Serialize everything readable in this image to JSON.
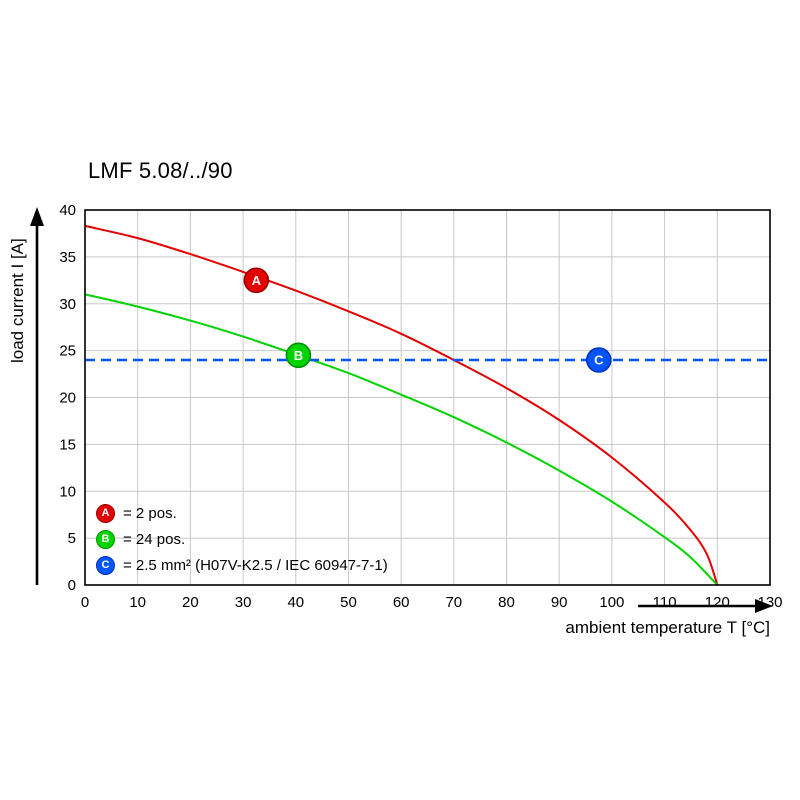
{
  "chart": {
    "title": "LMF 5.08/../90",
    "xlabel": "ambient temperature T [°C]",
    "ylabel": "load current I [A]"
  },
  "chart_data": {
    "type": "line",
    "title": "LMF 5.08/../90",
    "xlabel": "ambient temperature T [°C]",
    "ylabel": "load current I [A]",
    "xlim": [
      0,
      130
    ],
    "ylim": [
      0,
      40
    ],
    "x_ticks": [
      0,
      10,
      20,
      30,
      40,
      50,
      60,
      70,
      80,
      90,
      100,
      110,
      120,
      130
    ],
    "y_ticks": [
      0,
      5,
      10,
      15,
      20,
      25,
      30,
      35,
      40
    ],
    "grid": true,
    "legend_position": "inside-bottom-left",
    "colors": {
      "grid": "#c8c8c8",
      "axis": "#000000",
      "background": "#ffffff"
    },
    "series": [
      {
        "id": "A",
        "label": "= 2 pos.",
        "color": "#e30000",
        "marker_stroke": "#990000",
        "style": "solid",
        "points": [
          [
            0,
            38.3
          ],
          [
            10,
            37.0
          ],
          [
            20,
            35.3
          ],
          [
            30,
            33.4
          ],
          [
            40,
            31.4
          ],
          [
            50,
            29.2
          ],
          [
            60,
            26.8
          ],
          [
            70,
            24.0
          ],
          [
            80,
            21.0
          ],
          [
            90,
            17.6
          ],
          [
            100,
            13.6
          ],
          [
            110,
            8.8
          ],
          [
            115,
            5.8
          ],
          [
            118,
            3.3
          ],
          [
            120,
            0
          ]
        ],
        "marker_at": [
          32.5,
          32.5
        ]
      },
      {
        "id": "B",
        "label": "= 24 pos.",
        "color": "#00d400",
        "marker_stroke": "#009100",
        "style": "solid",
        "points": [
          [
            0,
            31.0
          ],
          [
            10,
            29.7
          ],
          [
            20,
            28.2
          ],
          [
            30,
            26.5
          ],
          [
            40,
            24.6
          ],
          [
            50,
            22.6
          ],
          [
            60,
            20.3
          ],
          [
            70,
            17.9
          ],
          [
            80,
            15.2
          ],
          [
            90,
            12.2
          ],
          [
            100,
            8.9
          ],
          [
            110,
            5.1
          ],
          [
            115,
            2.9
          ],
          [
            120,
            0
          ]
        ],
        "marker_at": [
          40.5,
          24.5
        ]
      },
      {
        "id": "C",
        "label": "= 2.5 mm² (H07V-K2.5 / IEC 60947-7-1)",
        "color": "#0055ff",
        "marker_stroke": "#0033bb",
        "style": "dashed",
        "points": [
          [
            0,
            24
          ],
          [
            130,
            24
          ]
        ],
        "marker_at": [
          97.5,
          24
        ]
      }
    ]
  }
}
